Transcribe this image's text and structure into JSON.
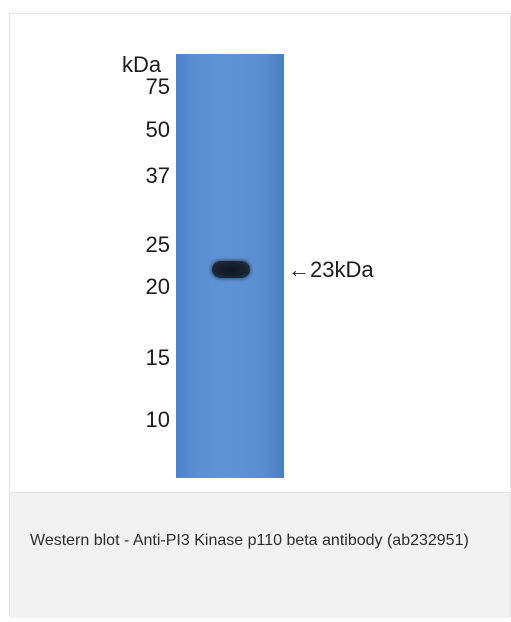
{
  "figure": {
    "unit_label": "kDa",
    "markers": [
      "75",
      "50",
      "37",
      "25",
      "20",
      "15",
      "10"
    ],
    "band_label": "←23kDa"
  },
  "caption": {
    "text": "Western blot - Anti-PI3 Kinase p110 beta antibody (ab232951)"
  }
}
